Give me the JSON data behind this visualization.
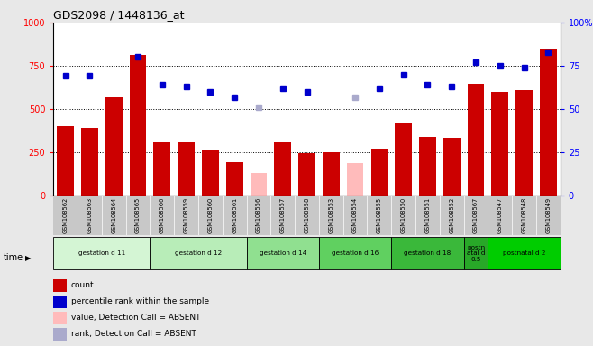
{
  "title": "GDS2098 / 1448136_at",
  "samples": [
    "GSM108562",
    "GSM108563",
    "GSM108564",
    "GSM108565",
    "GSM108566",
    "GSM108559",
    "GSM108560",
    "GSM108561",
    "GSM108556",
    "GSM108557",
    "GSM108558",
    "GSM108553",
    "GSM108554",
    "GSM108555",
    "GSM108550",
    "GSM108551",
    "GSM108552",
    "GSM108567",
    "GSM108547",
    "GSM108548",
    "GSM108549"
  ],
  "count_values": [
    400,
    390,
    570,
    810,
    305,
    305,
    260,
    190,
    null,
    305,
    245,
    250,
    null,
    270,
    420,
    340,
    335,
    645,
    600,
    610,
    850
  ],
  "count_absent": [
    null,
    null,
    null,
    null,
    null,
    null,
    null,
    null,
    130,
    null,
    null,
    null,
    185,
    null,
    null,
    null,
    null,
    null,
    null,
    null,
    null
  ],
  "rank_values": [
    69,
    69,
    null,
    80,
    64,
    63,
    60,
    57,
    null,
    62,
    60,
    null,
    null,
    62,
    70,
    64,
    63,
    77,
    75,
    74,
    83
  ],
  "rank_absent": [
    null,
    null,
    null,
    null,
    null,
    null,
    null,
    null,
    51,
    null,
    null,
    null,
    57,
    null,
    null,
    null,
    null,
    null,
    null,
    null,
    null
  ],
  "groups": [
    {
      "label": "gestation d 11",
      "start": 0,
      "end": 4,
      "color": "#d4f5d4"
    },
    {
      "label": "gestation d 12",
      "start": 4,
      "end": 8,
      "color": "#b8edb8"
    },
    {
      "label": "gestation d 14",
      "start": 8,
      "end": 11,
      "color": "#90e090"
    },
    {
      "label": "gestation d 16",
      "start": 11,
      "end": 14,
      "color": "#60d060"
    },
    {
      "label": "gestation d 18",
      "start": 14,
      "end": 17,
      "color": "#3ab83a"
    },
    {
      "label": "postn\natal d\n0.5",
      "start": 17,
      "end": 18,
      "color": "#28a828"
    },
    {
      "label": "postnatal d 2",
      "start": 18,
      "end": 21,
      "color": "#00cc00"
    }
  ],
  "bar_color": "#cc0000",
  "bar_absent_color": "#ffbbbb",
  "rank_color": "#0000cc",
  "rank_absent_color": "#aaaacc",
  "ylim_left": [
    0,
    1000
  ],
  "ylim_right": [
    0,
    100
  ],
  "yticks_left": [
    0,
    250,
    500,
    750,
    1000
  ],
  "yticks_right": [
    0,
    25,
    50,
    75,
    100
  ],
  "bg_color": "#e8e8e8",
  "plot_bg": "#ffffff",
  "xtick_bg": "#c8c8c8",
  "legend": [
    {
      "label": "count",
      "color": "#cc0000"
    },
    {
      "label": "percentile rank within the sample",
      "color": "#0000cc"
    },
    {
      "label": "value, Detection Call = ABSENT",
      "color": "#ffbbbb"
    },
    {
      "label": "rank, Detection Call = ABSENT",
      "color": "#aaaacc"
    }
  ]
}
